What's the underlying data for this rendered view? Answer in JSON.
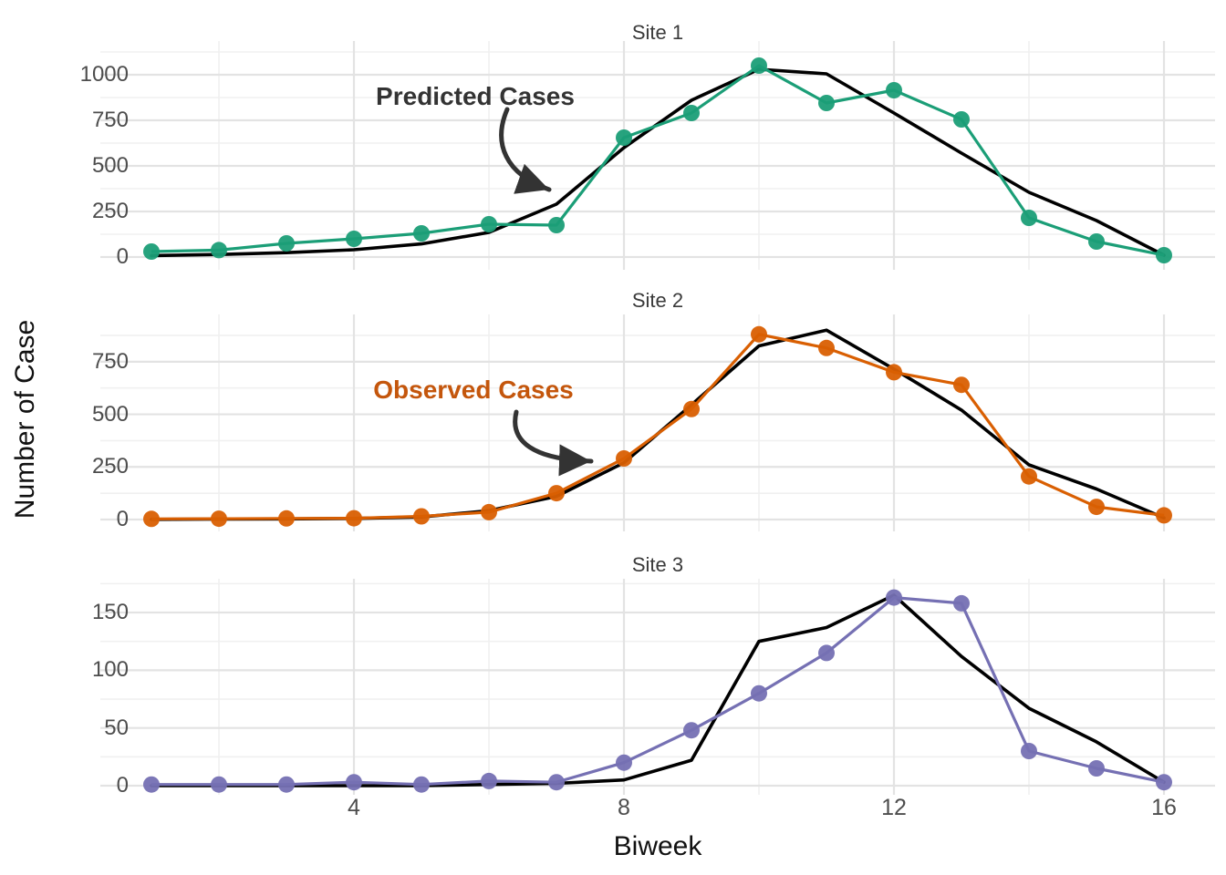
{
  "figure": {
    "x_axis": {
      "label": "Biweek",
      "ticks": [
        4,
        8,
        12,
        16
      ],
      "minor_ticks": [
        2,
        6,
        10,
        14
      ],
      "domain": [
        1,
        16
      ]
    },
    "y_axis": {
      "label": "Number of Case"
    },
    "annotations": {
      "predicted": "Predicted Cases",
      "observed": "Observed Cases"
    },
    "colors": {
      "predicted_line": "#000000",
      "site1_observed": "#1B9E77",
      "site2_observed": "#D95F02",
      "site3_observed": "#7570B3",
      "grid_major": "#E3E3E3",
      "grid_minor": "#F0F0F0",
      "tick_text": "#4D4D4D",
      "title_text": "#111111",
      "arrow": "#333333",
      "annotation_predicted_text": "#333333",
      "annotation_observed_text": "#C4560C"
    }
  },
  "chart_data": [
    {
      "type": "line",
      "title": "Site 1",
      "x": [
        1,
        2,
        3,
        4,
        5,
        6,
        7,
        8,
        9,
        10,
        11,
        12,
        13,
        14,
        15,
        16
      ],
      "series": [
        {
          "name": "Observed Cases",
          "color": "#1B9E77",
          "values": [
            30,
            38,
            75,
            100,
            130,
            180,
            175,
            655,
            790,
            1050,
            845,
            915,
            755,
            215,
            85,
            10
          ]
        },
        {
          "name": "Predicted Cases",
          "color": "#000000",
          "values": [
            8,
            14,
            24,
            40,
            72,
            135,
            290,
            600,
            860,
            1030,
            1005,
            790,
            570,
            355,
            200,
            10
          ]
        }
      ],
      "yticks": [
        0,
        250,
        500,
        750,
        1000
      ],
      "yminor": [
        125,
        375,
        625,
        875,
        1125
      ],
      "ylim": [
        -70,
        1185
      ],
      "grid": true,
      "legend": "none"
    },
    {
      "type": "line",
      "title": "Site 2",
      "x": [
        1,
        2,
        3,
        4,
        5,
        6,
        7,
        8,
        9,
        10,
        11,
        12,
        13,
        14,
        15,
        16
      ],
      "series": [
        {
          "name": "Observed Cases",
          "color": "#D95F02",
          "values": [
            3,
            4,
            5,
            6,
            15,
            35,
            125,
            290,
            525,
            880,
            815,
            700,
            640,
            205,
            60,
            20
          ]
        },
        {
          "name": "Predicted Cases",
          "color": "#000000",
          "values": [
            1,
            2,
            3,
            5,
            12,
            42,
            110,
            270,
            545,
            825,
            900,
            715,
            520,
            260,
            145,
            8
          ]
        }
      ],
      "yticks": [
        0,
        250,
        500,
        750
      ],
      "yminor": [
        125,
        375,
        625,
        875
      ],
      "ylim": [
        -56,
        975
      ],
      "grid": true,
      "legend": "none"
    },
    {
      "type": "line",
      "title": "Site 3",
      "x": [
        1,
        2,
        3,
        4,
        5,
        6,
        7,
        8,
        9,
        10,
        11,
        12,
        13,
        14,
        15,
        16
      ],
      "series": [
        {
          "name": "Observed Cases",
          "color": "#7570B3",
          "values": [
            1,
            1,
            1,
            3,
            1,
            4,
            3,
            20,
            48,
            80,
            115,
            163,
            158,
            30,
            15,
            3
          ]
        },
        {
          "name": "Predicted Cases",
          "color": "#000000",
          "values": [
            0,
            0,
            0,
            0,
            0,
            1,
            2,
            5,
            22,
            125,
            137,
            165,
            112,
            67,
            38,
            3
          ]
        }
      ],
      "yticks": [
        0,
        50,
        100,
        150
      ],
      "yminor": [
        25,
        75,
        125,
        175
      ],
      "ylim": [
        -8,
        179
      ],
      "grid": true,
      "legend": "none"
    }
  ]
}
